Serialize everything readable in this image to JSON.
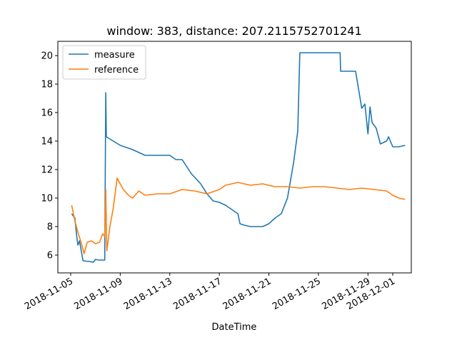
{
  "chart_data": {
    "type": "line",
    "title": "window: 383, distance: 207.2115752701241",
    "xlabel": "DateTime",
    "ylabel": "",
    "x_axis_type": "date",
    "xlim": [
      "2018-11-05",
      "2018-12-01"
    ],
    "ylim": [
      5,
      21
    ],
    "x_ticks": [
      "2018-11-05",
      "2018-11-09",
      "2018-11-13",
      "2018-11-17",
      "2018-11-21",
      "2018-11-25",
      "2018-11-29",
      "2018-12-01"
    ],
    "y_ticks": [
      6,
      8,
      10,
      12,
      14,
      16,
      18,
      20
    ],
    "grid": false,
    "legend_position": "top-left",
    "series": [
      {
        "name": "measure",
        "color": "#1f77b4",
        "points": [
          [
            "2018-11-05 02:00",
            8.9
          ],
          [
            "2018-11-05 08:00",
            8.6
          ],
          [
            "2018-11-05 12:00",
            7.2
          ],
          [
            "2018-11-05 14:00",
            6.7
          ],
          [
            "2018-11-05 17:00",
            7.0
          ],
          [
            "2018-11-06 00:00",
            5.6
          ],
          [
            "2018-11-06 12:00",
            5.55
          ],
          [
            "2018-11-06 20:00",
            5.5
          ],
          [
            "2018-11-07 00:00",
            5.7
          ],
          [
            "2018-11-07 06:00",
            5.65
          ],
          [
            "2018-11-07 18:00",
            5.65
          ],
          [
            "2018-11-07 20:00",
            17.4
          ],
          [
            "2018-11-07 21:00",
            14.3
          ],
          [
            "2018-11-08 06:00",
            14.1
          ],
          [
            "2018-11-09 00:00",
            13.7
          ],
          [
            "2018-11-10 00:00",
            13.4
          ],
          [
            "2018-11-11 00:00",
            13.0
          ],
          [
            "2018-11-12 00:00",
            13.0
          ],
          [
            "2018-11-13 00:00",
            13.0
          ],
          [
            "2018-11-13 12:00",
            12.7
          ],
          [
            "2018-11-14 00:00",
            12.7
          ],
          [
            "2018-11-14 18:00",
            11.7
          ],
          [
            "2018-11-15 12:00",
            11.0
          ],
          [
            "2018-11-16 00:00",
            10.3
          ],
          [
            "2018-11-16 12:00",
            9.8
          ],
          [
            "2018-11-17 00:00",
            9.7
          ],
          [
            "2018-11-17 12:00",
            9.5
          ],
          [
            "2018-11-18 00:00",
            9.2
          ],
          [
            "2018-11-18 12:00",
            8.9
          ],
          [
            "2018-11-18 16:00",
            8.2
          ],
          [
            "2018-11-19 00:00",
            8.1
          ],
          [
            "2018-11-19 12:00",
            8.0
          ],
          [
            "2018-11-20 00:00",
            8.0
          ],
          [
            "2018-11-20 12:00",
            8.0
          ],
          [
            "2018-11-21 00:00",
            8.2
          ],
          [
            "2018-11-21 12:00",
            8.6
          ],
          [
            "2018-11-22 00:00",
            8.9
          ],
          [
            "2018-11-22 12:00",
            10.0
          ],
          [
            "2018-11-23 00:00",
            12.5
          ],
          [
            "2018-11-23 08:00",
            14.7
          ],
          [
            "2018-11-23 12:00",
            20.2
          ],
          [
            "2018-11-24 00:00",
            20.2
          ],
          [
            "2018-11-25 00:00",
            20.2
          ],
          [
            "2018-11-26 00:00",
            20.2
          ],
          [
            "2018-11-26 18:00",
            20.2
          ],
          [
            "2018-11-26 19:00",
            18.9
          ],
          [
            "2018-11-27 12:00",
            18.9
          ],
          [
            "2018-11-28 00:00",
            18.9
          ],
          [
            "2018-11-28 06:00",
            17.6
          ],
          [
            "2018-11-28 12:00",
            16.3
          ],
          [
            "2018-11-28 18:00",
            16.6
          ],
          [
            "2018-11-29 00:00",
            14.5
          ],
          [
            "2018-11-29 04:00",
            16.4
          ],
          [
            "2018-11-29 08:00",
            15.3
          ],
          [
            "2018-11-29 16:00",
            14.9
          ],
          [
            "2018-11-30 00:00",
            13.8
          ],
          [
            "2018-11-30 12:00",
            14.0
          ],
          [
            "2018-11-30 16:00",
            14.3
          ],
          [
            "2018-12-01 00:00",
            13.6
          ],
          [
            "2018-12-01 12:00",
            13.6
          ],
          [
            "2018-12-02 00:00",
            13.7
          ]
        ]
      },
      {
        "name": "reference",
        "color": "#ff7f0e",
        "points": [
          [
            "2018-11-05 02:00",
            9.5
          ],
          [
            "2018-11-05 08:00",
            8.4
          ],
          [
            "2018-11-05 14:00",
            7.6
          ],
          [
            "2018-11-05 20:00",
            6.9
          ],
          [
            "2018-11-06 02:00",
            6.1
          ],
          [
            "2018-11-06 08:00",
            6.9
          ],
          [
            "2018-11-06 16:00",
            7.0
          ],
          [
            "2018-11-07 00:00",
            6.8
          ],
          [
            "2018-11-07 08:00",
            6.9
          ],
          [
            "2018-11-07 14:00",
            7.5
          ],
          [
            "2018-11-07 18:00",
            7.3
          ],
          [
            "2018-11-07 20:00",
            10.6
          ],
          [
            "2018-11-07 22:00",
            6.3
          ],
          [
            "2018-11-08 04:00",
            8.0
          ],
          [
            "2018-11-08 10:00",
            9.2
          ],
          [
            "2018-11-08 18:00",
            11.4
          ],
          [
            "2018-11-09 06:00",
            10.6
          ],
          [
            "2018-11-09 16:00",
            10.2
          ],
          [
            "2018-11-10 00:00",
            10.0
          ],
          [
            "2018-11-10 12:00",
            10.5
          ],
          [
            "2018-11-11 00:00",
            10.2
          ],
          [
            "2018-11-12 00:00",
            10.3
          ],
          [
            "2018-11-13 00:00",
            10.3
          ],
          [
            "2018-11-14 00:00",
            10.6
          ],
          [
            "2018-11-15 00:00",
            10.5
          ],
          [
            "2018-11-16 00:00",
            10.3
          ],
          [
            "2018-11-17 00:00",
            10.6
          ],
          [
            "2018-11-17 12:00",
            10.9
          ],
          [
            "2018-11-18 12:00",
            11.1
          ],
          [
            "2018-11-19 12:00",
            10.9
          ],
          [
            "2018-11-20 12:00",
            11.0
          ],
          [
            "2018-11-21 12:00",
            10.8
          ],
          [
            "2018-11-22 12:00",
            10.8
          ],
          [
            "2018-11-23 12:00",
            10.7
          ],
          [
            "2018-11-24 12:00",
            10.8
          ],
          [
            "2018-11-25 12:00",
            10.8
          ],
          [
            "2018-11-26 12:00",
            10.7
          ],
          [
            "2018-11-27 12:00",
            10.6
          ],
          [
            "2018-11-28 12:00",
            10.7
          ],
          [
            "2018-11-29 12:00",
            10.6
          ],
          [
            "2018-11-30 12:00",
            10.5
          ],
          [
            "2018-12-01 00:00",
            10.2
          ],
          [
            "2018-12-01 12:00",
            10.0
          ],
          [
            "2018-12-02 00:00",
            9.9
          ]
        ]
      }
    ]
  }
}
